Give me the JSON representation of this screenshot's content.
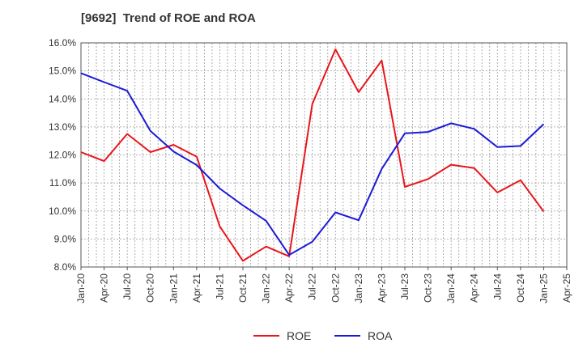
{
  "chart_data": {
    "type": "line",
    "title": "[9692]  Trend of ROE and ROA",
    "x": [
      "Jan-20",
      "Apr-20",
      "Jul-20",
      "Oct-20",
      "Jan-21",
      "Apr-21",
      "Jul-21",
      "Oct-21",
      "Jan-22",
      "Apr-22",
      "Jul-22",
      "Oct-22",
      "Jan-23",
      "Apr-23",
      "Jul-23",
      "Oct-23",
      "Jan-24",
      "Apr-24",
      "Jul-24",
      "Oct-24",
      "Jan-25",
      "Apr-25"
    ],
    "ylim": [
      8.0,
      16.0
    ],
    "yticks": [
      "16.0%",
      "15.0%",
      "14.0%",
      "13.0%",
      "12.0%",
      "11.0%",
      "10.0%",
      "9.0%",
      "8.0%"
    ],
    "grid": true,
    "legend_position": "bottom-center",
    "series": [
      {
        "name": "ROE",
        "color": "#e8161b",
        "values": [
          12.1,
          11.78,
          12.75,
          12.1,
          12.36,
          11.94,
          9.45,
          8.22,
          8.73,
          8.38,
          13.82,
          15.77,
          14.24,
          15.37,
          10.86,
          11.14,
          11.65,
          11.53,
          10.66,
          11.1,
          9.98,
          null
        ]
      },
      {
        "name": "ROA",
        "color": "#1b1bd6",
        "values": [
          14.92,
          14.6,
          14.29,
          12.86,
          12.12,
          11.64,
          10.8,
          10.2,
          9.65,
          8.43,
          8.9,
          9.95,
          9.67,
          11.5,
          12.77,
          12.82,
          13.13,
          12.93,
          12.28,
          12.32,
          13.1,
          null
        ]
      }
    ]
  }
}
